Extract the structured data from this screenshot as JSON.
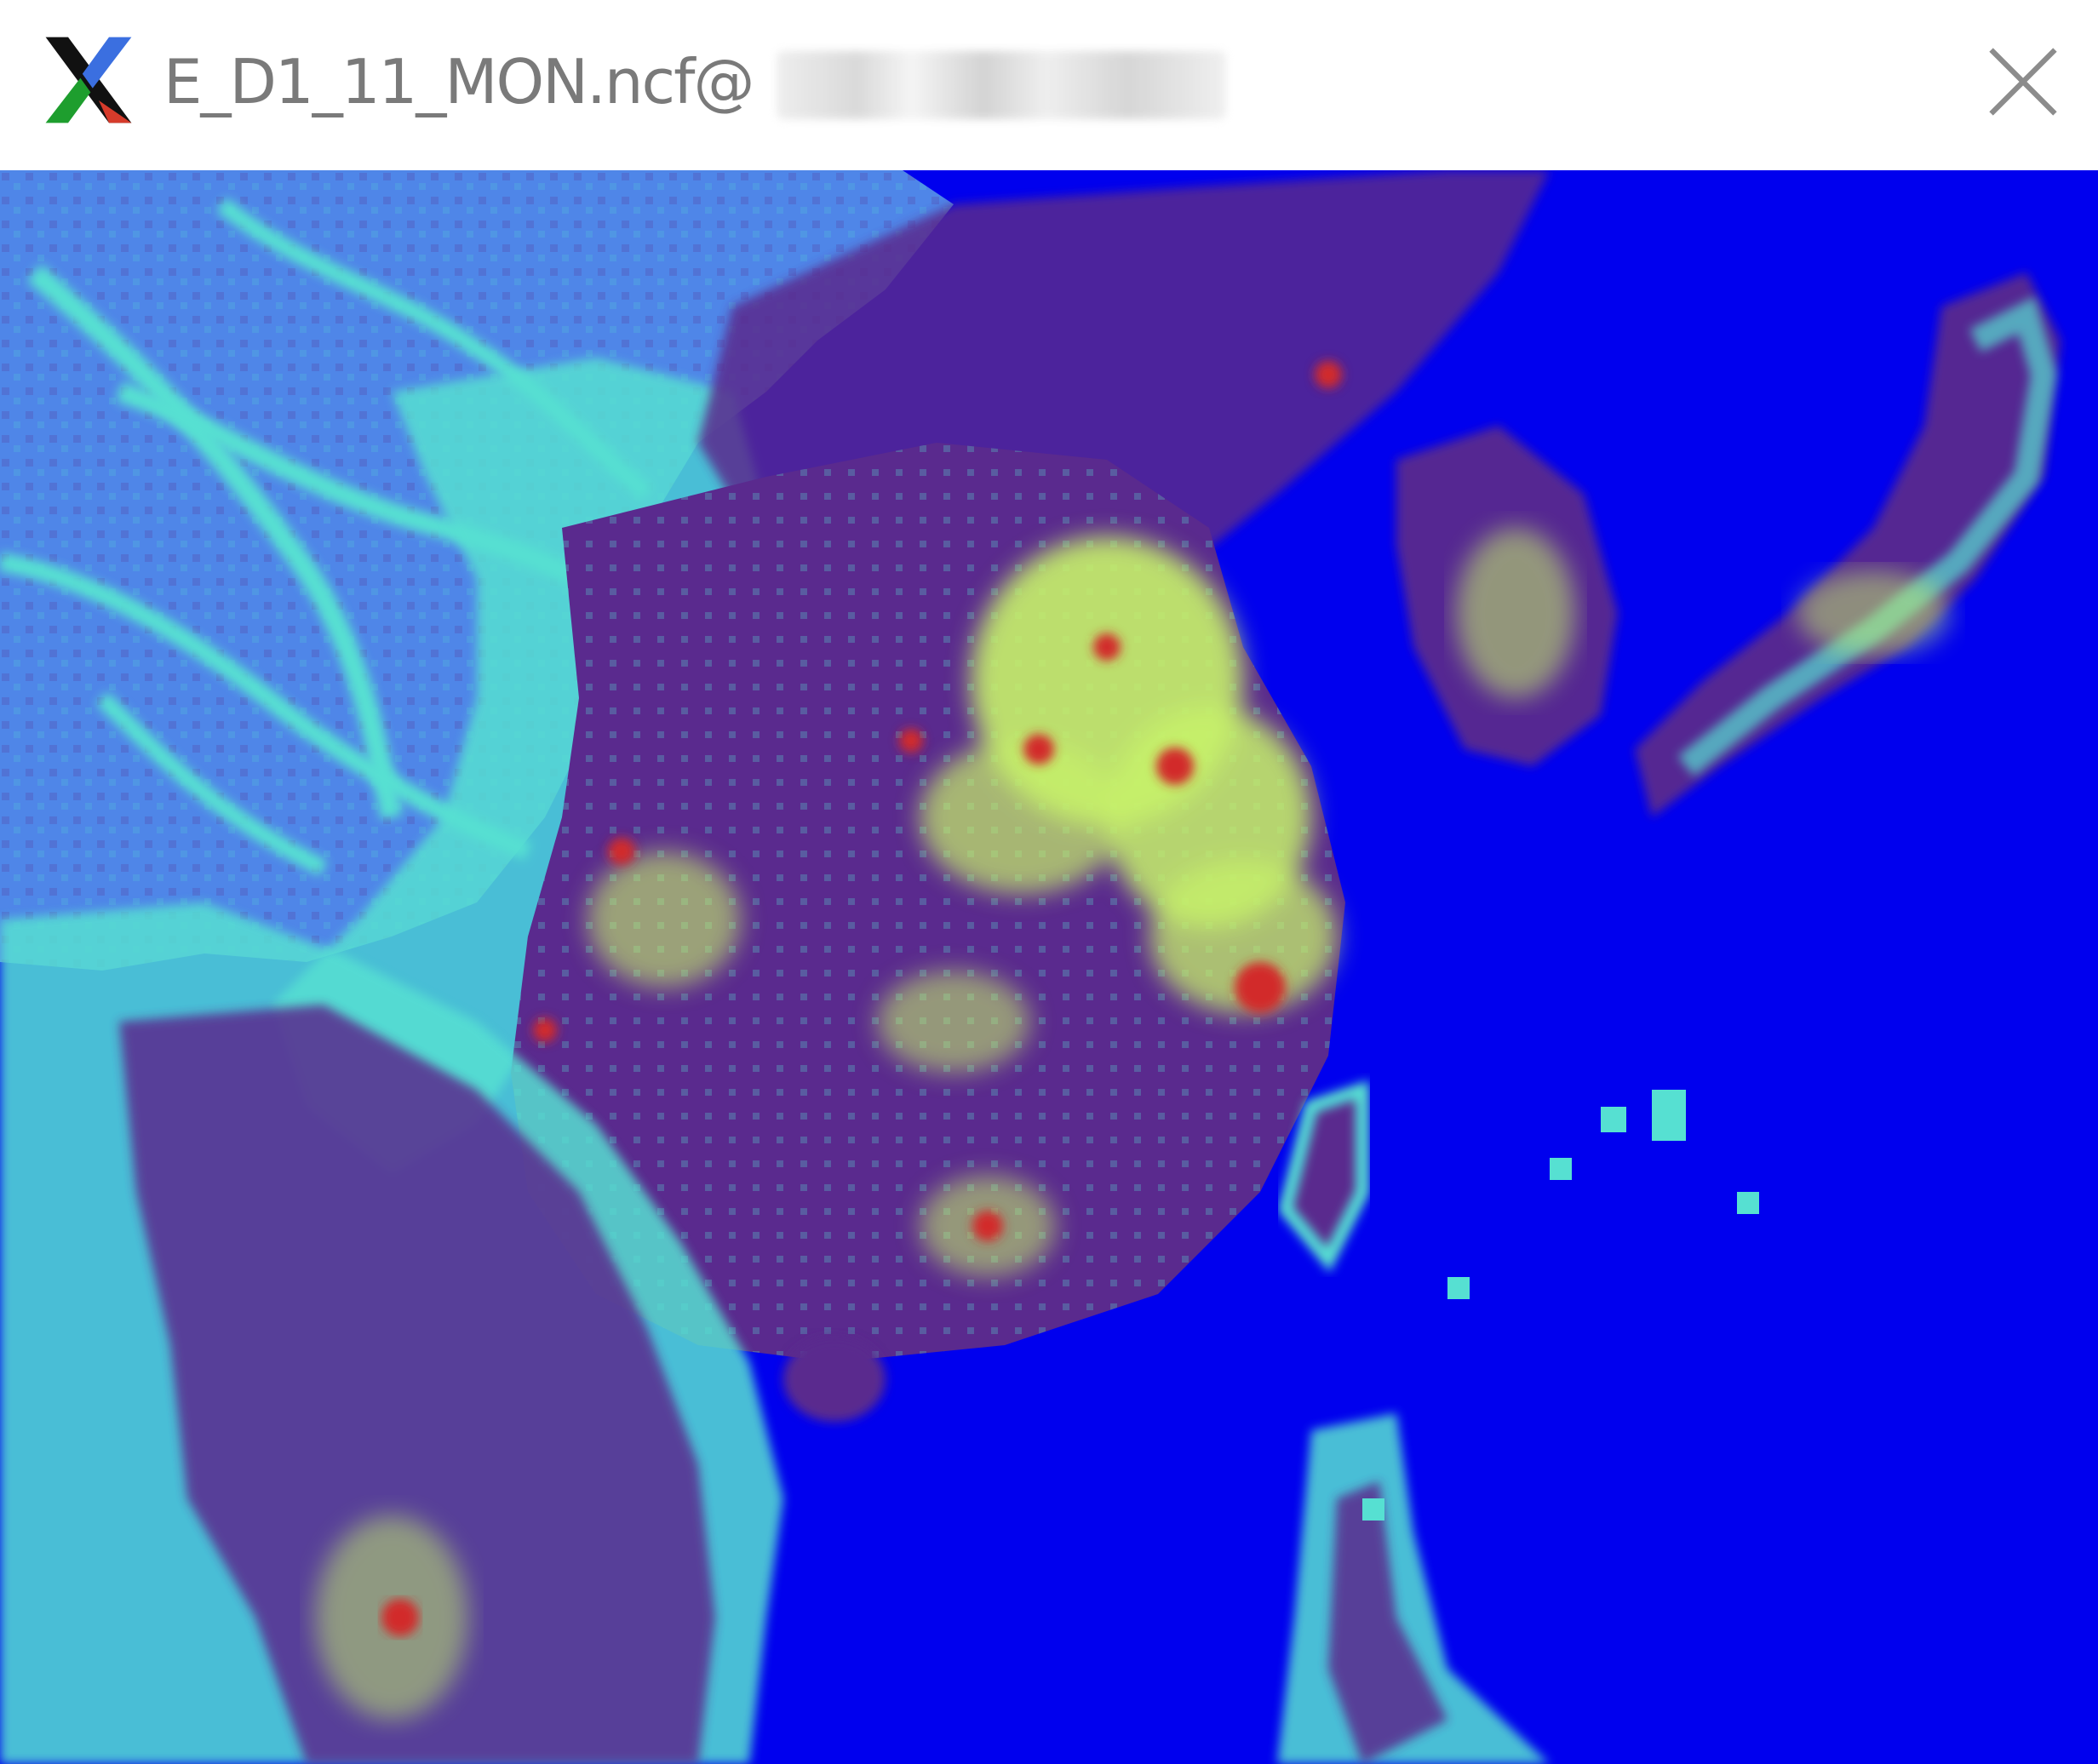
{
  "window": {
    "title": "E_D1_11_MON.ncf@",
    "icon": "x11-icon",
    "close_icon": "close-icon"
  },
  "map": {
    "colors": {
      "background": "#0000ee",
      "low": "#4f86e8",
      "mid": "#56e0d2",
      "dark": "#5a2a8e",
      "high": "#c7f26a",
      "peak": "#d22a2a"
    }
  }
}
